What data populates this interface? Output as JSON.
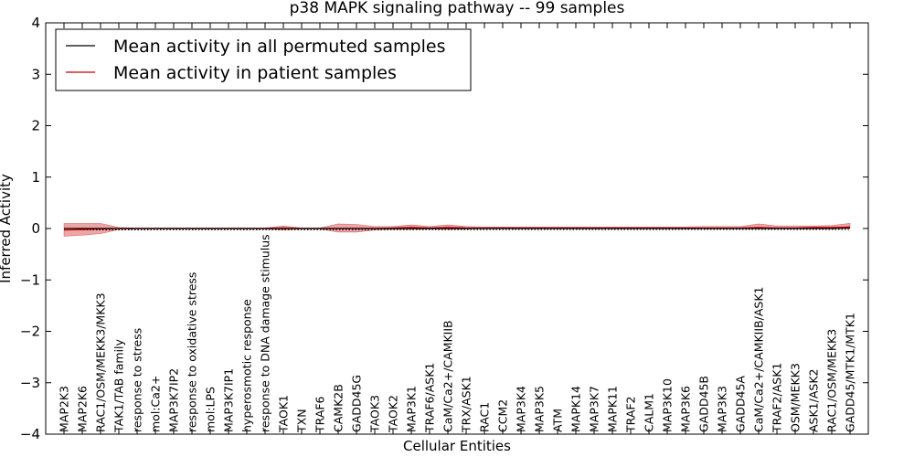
{
  "chart_data": {
    "type": "line",
    "title": "p38 MAPK signaling pathway -- 99 samples",
    "xlabel": "Cellular Entities",
    "ylabel": "Inferred Activity",
    "ylim": [
      -4,
      4
    ],
    "yticks": [
      -4,
      -3,
      -2,
      -1,
      0,
      1,
      2,
      3,
      4
    ],
    "ytick_labels": [
      "−4",
      "−3",
      "−2",
      "−1",
      "0",
      "1",
      "2",
      "3",
      "4"
    ],
    "legend_position": "top-left",
    "categories": [
      "MAP2K3",
      "MAP2K6",
      "RAC1/OSM/MEKK3/MKK3",
      "TAK1/TAB family",
      "response to stress",
      "mol:Ca2+",
      "MAP3K7IP2",
      "response to oxidative stress",
      "mol:LPS",
      "MAP3K7IP1",
      "hyperosmotic response",
      "response to DNA damage stimulus",
      "TAOK1",
      "TXN",
      "TRAF6",
      "CAMK2B",
      "GADD45G",
      "TAOK3",
      "TAOK2",
      "MAP3K1",
      "TRAF6/ASK1",
      "CaM/Ca2+/CAMKIIB",
      "TRX/ASK1",
      "RAC1",
      "CCM2",
      "MAP3K4",
      "MAP3K5",
      "ATM",
      "MAPK14",
      "MAP3K7",
      "MAPK11",
      "TRAF2",
      "CALM1",
      "MAP3K10",
      "MAP3K6",
      "GADD45B",
      "MAP3K3",
      "GADD45A",
      "CaM/Ca2+/CAMKIIB/ASK1",
      "TRAF2/ASK1",
      "OSM/MEKK3",
      "ASK1/ASK2",
      "RAC1/OSM/MEKK3",
      "GADD45/MTK1/MTK1"
    ],
    "series": [
      {
        "name": "Mean activity in all permuted samples",
        "color": "#000000",
        "values": [
          0,
          0,
          0,
          0,
          0,
          0,
          0,
          0,
          0,
          0,
          0,
          0,
          0,
          0,
          0,
          0,
          0,
          0,
          0,
          0,
          0,
          0,
          0,
          0,
          0,
          0,
          0,
          0,
          0,
          0,
          0,
          0,
          0,
          0,
          0,
          0,
          0,
          0,
          0,
          0,
          0,
          0,
          0,
          0.01
        ]
      },
      {
        "name": "Mean activity in patient samples",
        "color": "#cc0000",
        "values": [
          -0.03,
          -0.02,
          -0.01,
          0,
          0,
          0,
          0,
          0,
          0,
          0,
          0,
          0,
          0.01,
          0,
          0,
          0,
          0,
          0,
          0.01,
          0.02,
          0.01,
          0.02,
          0.01,
          0.01,
          0.01,
          0.01,
          0.01,
          0.01,
          0.01,
          0.01,
          0.01,
          0.01,
          0.01,
          0.01,
          0.01,
          0.01,
          0.01,
          0.01,
          0.02,
          0.01,
          0.01,
          0.02,
          0.02,
          0.03
        ],
        "band_upper": [
          0.1,
          0.1,
          0.1,
          0.02,
          0.01,
          0.01,
          0.01,
          0.01,
          0.01,
          0.01,
          0.01,
          0.01,
          0.05,
          0.01,
          0.01,
          0.09,
          0.08,
          0.04,
          0.04,
          0.07,
          0.04,
          0.07,
          0.04,
          0.03,
          0.03,
          0.03,
          0.03,
          0.03,
          0.03,
          0.03,
          0.03,
          0.03,
          0.03,
          0.03,
          0.03,
          0.04,
          0.04,
          0.04,
          0.09,
          0.05,
          0.05,
          0.05,
          0.06,
          0.1
        ],
        "band_lower": [
          -0.15,
          -0.13,
          -0.1,
          -0.02,
          -0.01,
          -0.01,
          -0.01,
          -0.01,
          -0.01,
          -0.01,
          -0.01,
          -0.01,
          -0.03,
          -0.01,
          -0.01,
          -0.07,
          -0.07,
          -0.03,
          -0.02,
          -0.02,
          -0.01,
          -0.02,
          -0.01,
          0,
          0,
          0,
          0,
          0,
          0,
          0,
          0,
          0,
          0,
          0,
          0,
          0,
          0,
          0,
          0,
          0,
          0,
          0,
          0,
          0
        ]
      }
    ],
    "permuted_reference_line": "dotted"
  }
}
